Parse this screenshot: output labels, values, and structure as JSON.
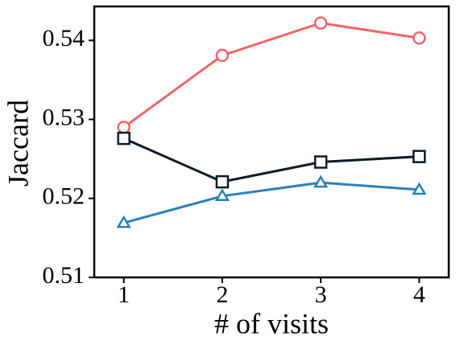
{
  "chart_data": {
    "type": "line",
    "xlabel": "# of visits",
    "ylabel": "Jaccard",
    "x": [
      1,
      2,
      3,
      4
    ],
    "series": [
      {
        "color": "#f0646a",
        "marker": "circle",
        "values": [
          0.529,
          0.5381,
          0.5422,
          0.5403
        ]
      },
      {
        "color": "#0d1b2a",
        "marker": "square",
        "values": [
          0.5276,
          0.5221,
          0.5246,
          0.5253
        ]
      },
      {
        "color": "#2a80b9",
        "marker": "triangle",
        "values": [
          0.5169,
          0.5203,
          0.522,
          0.5211
        ]
      }
    ],
    "xlim": [
      0.7,
      4.3
    ],
    "ylim": [
      0.51,
      0.5443
    ],
    "xticks": [
      1,
      2,
      3,
      4
    ],
    "yticks": [
      0.51,
      0.52,
      0.53,
      0.54
    ],
    "grid": false
  }
}
